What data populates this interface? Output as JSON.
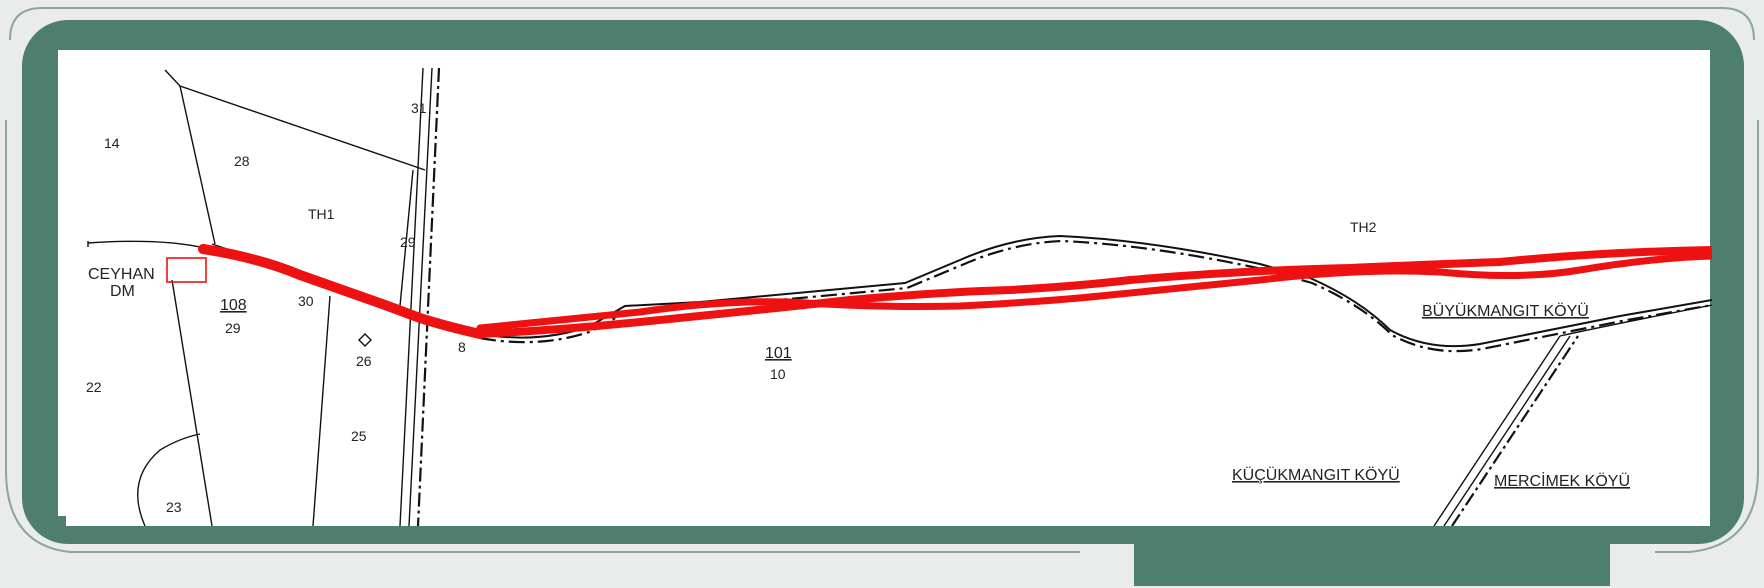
{
  "colors": {
    "frame_green": "#4e7f6e",
    "background": "#e9ecea",
    "map_background": "#ffffff",
    "route_red": "#ee1111",
    "linework": "#111111"
  },
  "map": {
    "parcels": {
      "p14": "14",
      "p28": "28",
      "p22": "22",
      "p23": "23",
      "p25": "25",
      "p26": "26",
      "p29": "29",
      "p30": "30",
      "p31": "31",
      "p8": "8"
    },
    "block_108": {
      "number": "108",
      "sub": "29"
    },
    "block_101": {
      "number": "101",
      "sub": "10"
    },
    "place_labels": {
      "ceyhan_line1": "CEYHAN",
      "ceyhan_line2": "DM",
      "th1": "TH1",
      "th2": "TH2",
      "buyukmangit": "BÜYÜKMANGIT KÖYÜ",
      "kucukmangit": "KÜÇÜKMANGIT KÖYÜ",
      "mercimek": "MERCİMEK KÖYÜ"
    }
  }
}
